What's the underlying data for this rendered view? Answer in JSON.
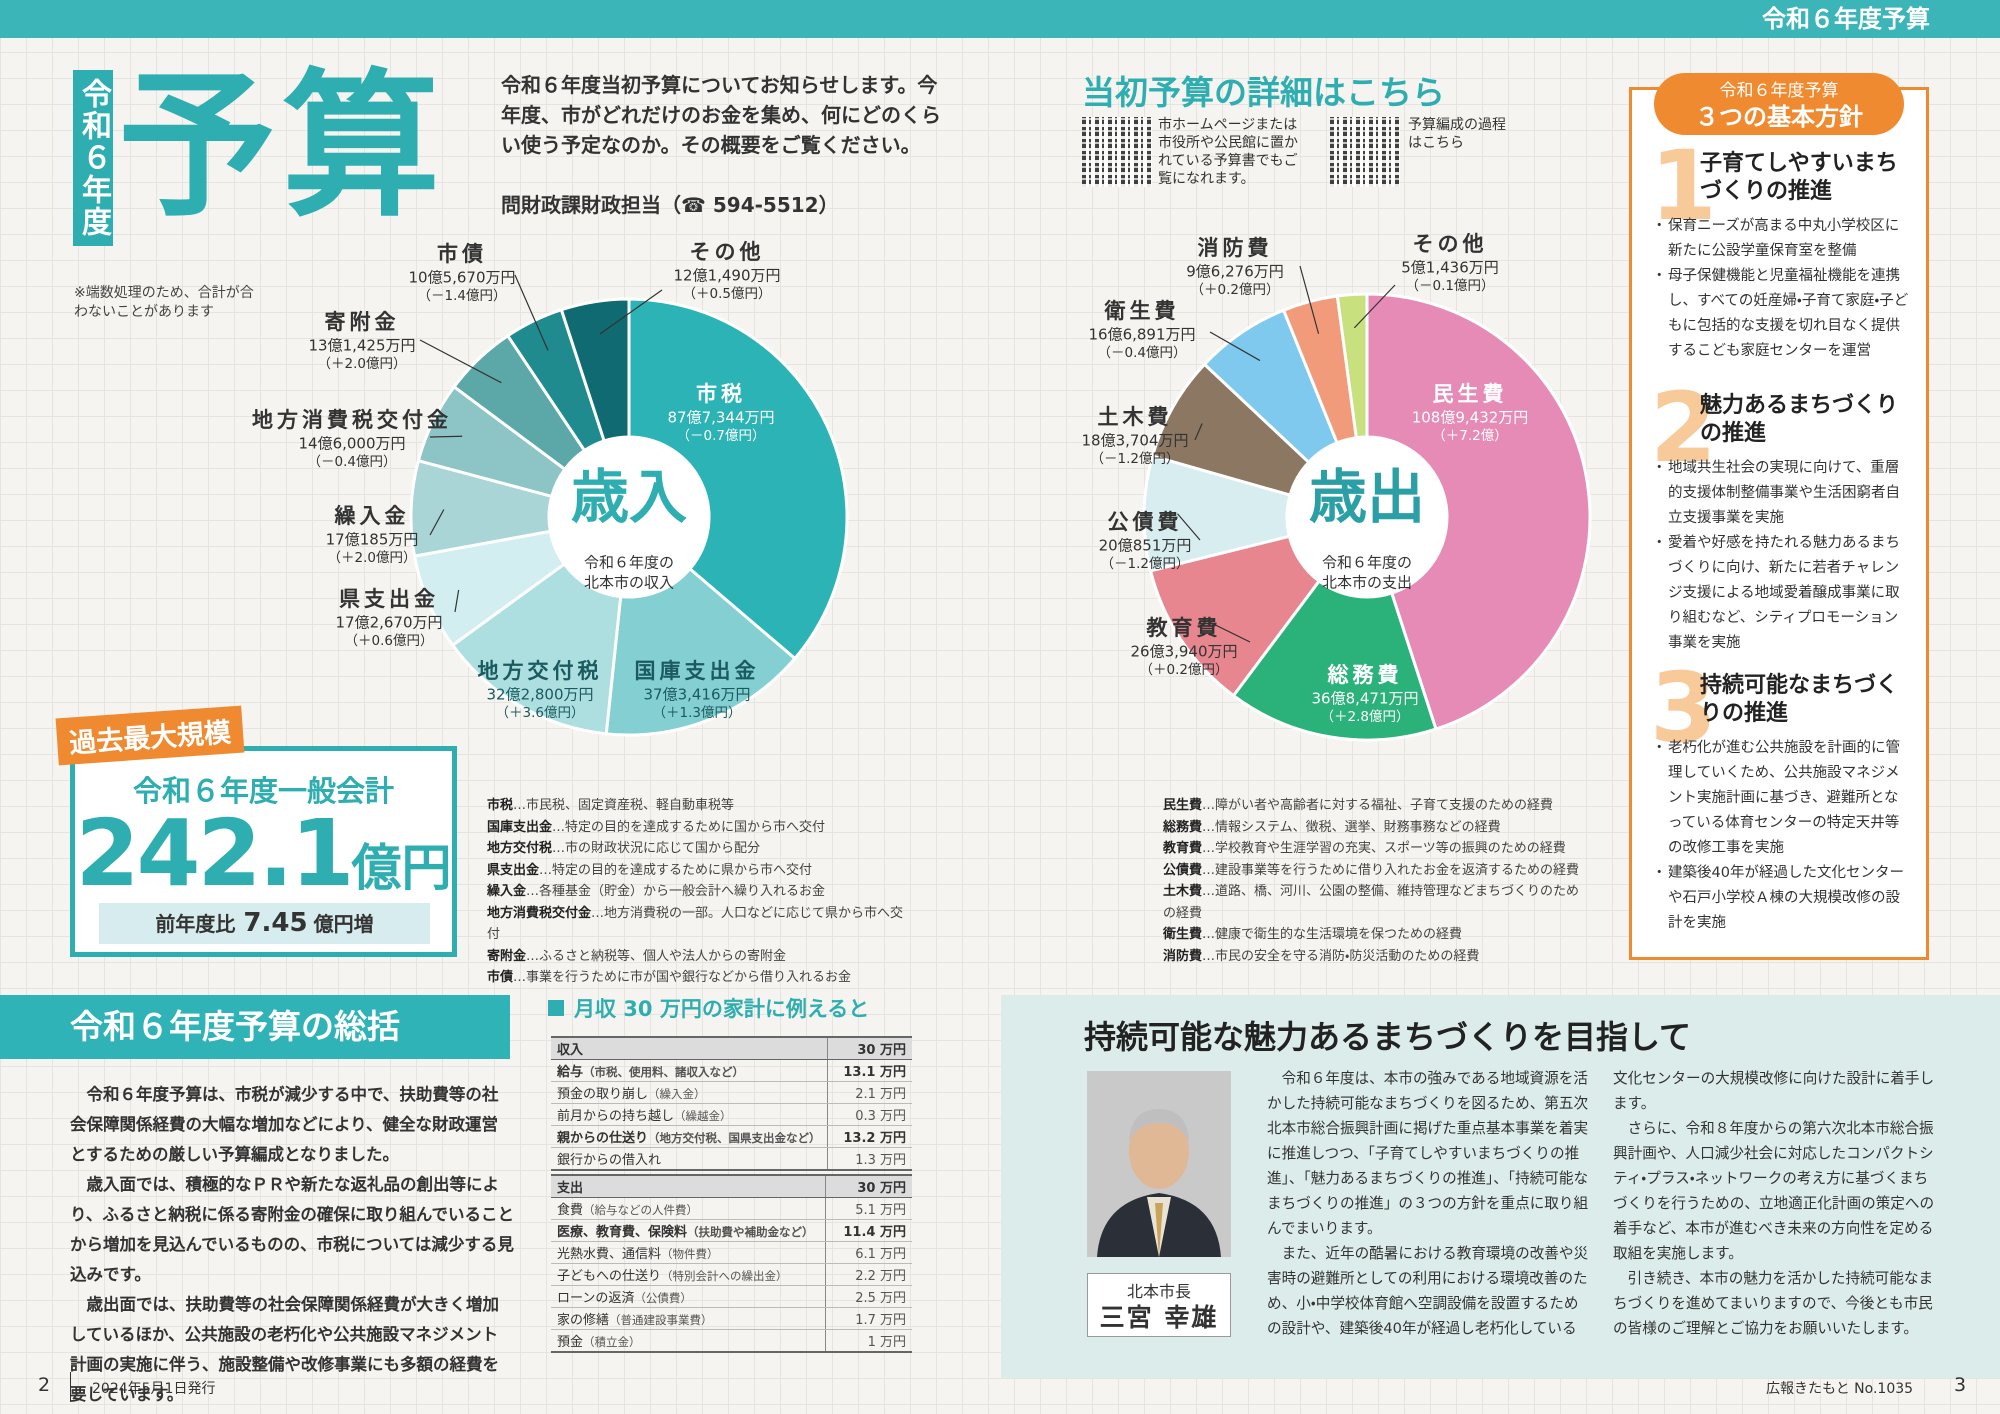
{
  "header": {
    "label": "令和６年度予算"
  },
  "title": {
    "vertical": "令和６年度",
    "main": "予算"
  },
  "intro": {
    "text": "令和６年度当初予算についてお知らせします。今年度、市がどれだけのお金を集め、何にどのくらい使う予定なのか。その概要をご覧ください。",
    "contact": "問財政課財政担当（☎ 594-5512）"
  },
  "note": "※端数処理のため、合計が合わないことがあります",
  "detail": {
    "title": "当初予算の詳細はこちら",
    "qr1_text": "市ホームページまたは市役所や公民館に置かれている予算書でもご覧になれます。",
    "qr2_text": "予算編成の過程はこちら"
  },
  "policies": {
    "label": "令和６年度予算",
    "title": "３つの基本方針",
    "items": [
      {
        "number": "1",
        "title": "子育てしやすいまちづくりの推進",
        "bullets": [
          "保育ニーズが高まる中丸小学校区に新たに公設学童保育室を整備",
          "母子保健機能と児童福祉機能を連携し、すべての妊産婦・子育て家庭・子どもに包括的な支援を切れ目なく提供するこども家庭センターを運営"
        ]
      },
      {
        "number": "2",
        "title": "魅力あるまちづくりの推進",
        "bullets": [
          "地域共生社会の実現に向けて、重層的支援体制整備事業や生活困窮者自立支援事業を実施",
          "愛着や好感を持たれる魅力あるまちづくりに向け、新たに若者チャレンジ支援による地域愛着醸成事業に取り組むなど、シティプロモーション事業を実施"
        ]
      },
      {
        "number": "3",
        "title": "持続可能なまちづくりの推進",
        "bullets": [
          "老朽化が進む公共施設を計画的に管理していくため、公共施設マネジメント実施計画に基づき、避難所となっている体育センターの特定天井等の改修工事を実施",
          "建築後40年が経過した文化センターや石戸小学校Ａ棟の大規模改修の設計を実施"
        ]
      }
    ]
  },
  "total": {
    "badge": "過去最大規模",
    "title": "令和６年度一般会計",
    "amount": 242.1,
    "unit": "億円",
    "compare_label": "前年度比",
    "compare_value": 7.45,
    "compare_unit": "億円増"
  },
  "chart_data": [
    {
      "type": "pie",
      "center_title": "歳入",
      "center_lines": [
        "令和６年度の",
        "北本市の収入"
      ],
      "categories": [
        "市税",
        "国庫支出金",
        "地方交付税",
        "県支出金",
        "繰入金",
        "地方消費税交付金",
        "寄附金",
        "市債",
        "その他"
      ],
      "values": [
        877344,
        373416,
        322800,
        172670,
        170185,
        146000,
        131425,
        105670,
        121490
      ],
      "value_labels": [
        "87億7,344万円",
        "37億3,416万円",
        "32億2,800万円",
        "17億2,670万円",
        "17億185万円",
        "14億6,000万円",
        "13億1,425万円",
        "10億5,670万円",
        "12億1,490万円"
      ],
      "change_labels": [
        "（－0.7億円）",
        "（＋1.3億円）",
        "（＋3.6億円）",
        "（＋0.6億円）",
        "（＋2.0億円）",
        "（－0.4億円）",
        "（＋2.0億円）",
        "（－1.4億円）",
        "（＋0.5億円）"
      ],
      "colors": [
        "#2bb3b6",
        "#84cfd2",
        "#addfe1",
        "#d3eef0",
        "#a9d5d6",
        "#8dc4c5",
        "#5ca8a9",
        "#1f8b8f",
        "#0f6a72"
      ]
    },
    {
      "type": "pie",
      "center_title": "歳出",
      "center_lines": [
        "令和６年度の",
        "北本市の支出"
      ],
      "categories": [
        "民生費",
        "総務費",
        "教育費",
        "公債費",
        "土木費",
        "衛生費",
        "消防費",
        "その他"
      ],
      "values": [
        1089432,
        368471,
        263940,
        200851,
        183704,
        166891,
        96276,
        51436
      ],
      "value_labels": [
        "108億9,432万円",
        "36億8,471万円",
        "26億3,940万円",
        "20億851万円",
        "18億3,704万円",
        "16億6,891万円",
        "9億6,276万円",
        "5億1,436万円"
      ],
      "change_labels": [
        "（＋7.2億）",
        "（＋2.8億円）",
        "（＋0.2億円）",
        "（－1.2億円）",
        "（－1.2億円）",
        "（－0.4億円）",
        "（＋0.2億円）",
        "（－0.1億円）"
      ],
      "colors": [
        "#e58bb5",
        "#2bb27b",
        "#e7868f",
        "#d7edef",
        "#8b7762",
        "#7fc9ef",
        "#f19b7b",
        "#c8e07e"
      ]
    }
  ],
  "glossary_revenue": [
    {
      "term": "市税",
      "desc": "…市民税、固定資産税、軽自動車税等"
    },
    {
      "term": "国庫支出金",
      "desc": "…特定の目的を達成するために国から市へ交付"
    },
    {
      "term": "地方交付税",
      "desc": "…市の財政状況に応じて国から配分"
    },
    {
      "term": "県支出金",
      "desc": "…特定の目的を達成するために県から市へ交付"
    },
    {
      "term": "繰入金",
      "desc": "…各種基金（貯金）から一般会計へ繰り入れるお金"
    },
    {
      "term": "地方消費税交付金",
      "desc": "…地方消費税の一部。人口などに応じて県から市へ交付"
    },
    {
      "term": "寄附金",
      "desc": "…ふるさと納税等、個人や法人からの寄附金"
    },
    {
      "term": "市債",
      "desc": "…事業を行うために市が国や銀行などから借り入れるお金"
    }
  ],
  "glossary_expense": [
    {
      "term": "民生費",
      "desc": "…障がい者や高齢者に対する福祉、子育て支援のための経費"
    },
    {
      "term": "総務費",
      "desc": "…情報システム、徴税、選挙、財務事務などの経費"
    },
    {
      "term": "教育費",
      "desc": "…学校教育や生涯学習の充実、スポーツ等の振興のための経費"
    },
    {
      "term": "公債費",
      "desc": "…建設事業等を行うために借り入れたお金を返済するための経費"
    },
    {
      "term": "土木費",
      "desc": "…道路、橋、河川、公園の整備、維持管理などまちづくりのための経費"
    },
    {
      "term": "衛生費",
      "desc": "…健康で衛生的な生活環境を保つための経費"
    },
    {
      "term": "消防費",
      "desc": "…市民の安全を守る消防・防災活動のための経費"
    }
  ],
  "summary": {
    "title": "令和６年度予算の総括",
    "paragraphs": [
      "令和６年度予算は、市税が減少する中で、扶助費等の社会保障関係経費の大幅な増加などにより、健全な財政運営とするための厳しい予算編成となりました。",
      "歳入面では、積極的なＰＲや新たな返礼品の創出等により、ふるさと納税に係る寄附金の確保に取り組んでいることから増加を見込んでいるものの、市税については減少する見込みです。",
      "歳出面では、扶助費等の社会保障関係経費が大きく増加しているほか、公共施設の老朽化や公共施設マネジメント計画の実施に伴う、施設整備や改修事業にも多額の経費を要しています。"
    ]
  },
  "household": {
    "title": "月収 30 万円の家計に例えると",
    "tables": [
      {
        "header": [
          "収入",
          "30 万円"
        ],
        "rows": [
          {
            "item": "給与",
            "note": "（市税、使用料、諸収入など）",
            "amount": "13.1 万円",
            "emphasis": true
          },
          {
            "item": "預金の取り崩し",
            "note": "（繰入金）",
            "amount": "2.1 万円",
            "emphasis": false
          },
          {
            "item": "前月からの持ち越し",
            "note": "（繰越金）",
            "amount": "0.3 万円",
            "emphasis": false
          },
          {
            "item": "親からの仕送り",
            "note": "（地方交付税、国県支出金など）",
            "amount": "13.2 万円",
            "emphasis": true
          },
          {
            "item": "銀行からの借入れ",
            "note": "",
            "amount": "1.3 万円",
            "emphasis": false
          }
        ]
      },
      {
        "header": [
          "支出",
          "30 万円"
        ],
        "rows": [
          {
            "item": "食費",
            "note": "（給与などの人件費）",
            "amount": "5.1 万円",
            "emphasis": false
          },
          {
            "item": "医療、教育費、保険料",
            "note": "（扶助費や補助金など）",
            "amount": "11.4 万円",
            "emphasis": true
          },
          {
            "item": "光熱水費、通信料",
            "note": "（物件費）",
            "amount": "6.1 万円",
            "emphasis": false
          },
          {
            "item": "子どもへの仕送り",
            "note": "（特別会計への繰出金）",
            "amount": "2.2 万円",
            "emphasis": false
          },
          {
            "item": "ローンの返済",
            "note": "（公債費）",
            "amount": "2.5 万円",
            "emphasis": false
          },
          {
            "item": "家の修繕",
            "note": "（普通建設事業費）",
            "amount": "1.7 万円",
            "emphasis": false
          },
          {
            "item": "預金",
            "note": "（積立金）",
            "amount": "1 万円",
            "emphasis": false
          }
        ]
      }
    ]
  },
  "message": {
    "title": "持続可能な魅力あるまちづくりを目指して",
    "role": "北本市長",
    "name": "三宮 幸雄",
    "paragraphs": [
      "令和６年度は、本市の強みである地域資源を活かした持続可能なまちづくりを図るため、第五次北本市総合振興計画に掲げた重点基本事業を着実に推進しつつ、「子育てしやすいまちづくりの推進」、「魅力あるまちづくりの推進」、「持続可能なまちづくりの推進」の３つの方針を重点に取り組んでまいります。",
      "また、近年の酷暑における教育環境の改善や災害時の避難所としての利用における環境改善のため、小・中学校体育館へ空調設備を設置するための設計や、建築後40年が経過し老朽化している文化センターの大規模改修に向けた設計に着手します。",
      "さらに、令和８年度からの第六次北本市総合振興計画や、人口減少社会に対応したコンパクトシティ・プラス・ネットワークの考え方に基づくまちづくりを行うための、立地適正化計画の策定への着手など、本市が進むべき未来の方向性を定める取組を実施します。",
      "引き続き、本市の魅力を活かした持続可能なまちづくりを進めてまいりますので、今後とも市民の皆様のご理解とご協力をお願いいたします。"
    ]
  },
  "footer": {
    "left_page": "2",
    "date": "2024年5月1日発行",
    "magazine": "広報きたもと No.1035",
    "right_page": "3"
  }
}
